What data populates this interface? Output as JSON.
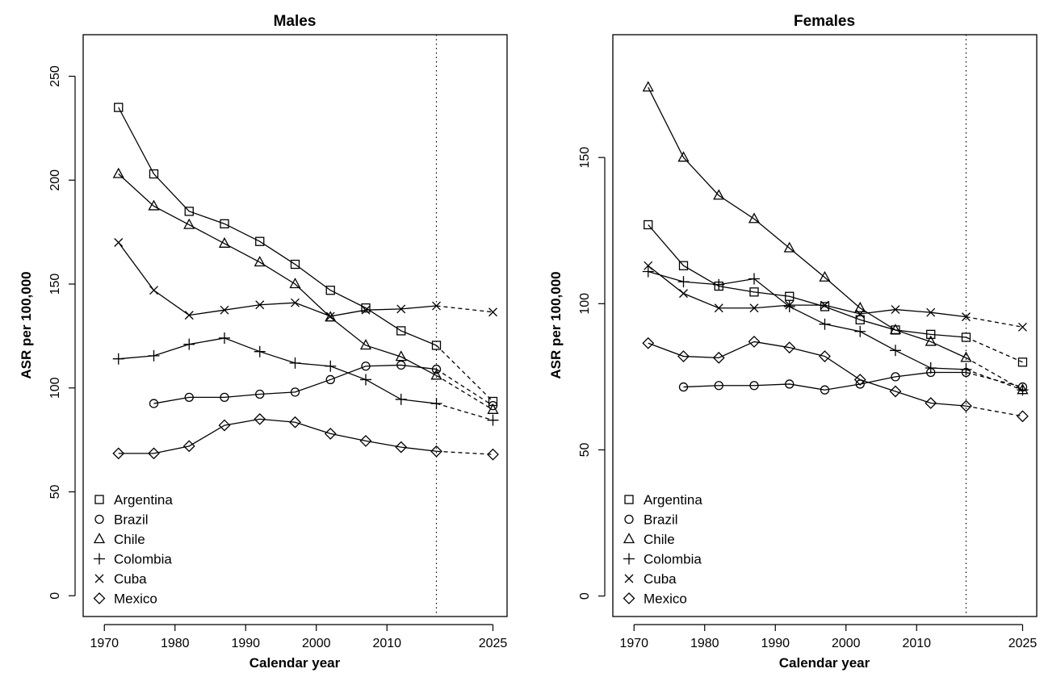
{
  "chart_data": [
    {
      "type": "line",
      "title": "Males",
      "xlabel": "Calendar year",
      "ylabel": "ASR per 100,000",
      "xlim": [
        1967,
        2027
      ],
      "ylim": [
        -10,
        270
      ],
      "x_ticks": [
        "1970",
        "1980",
        "1990",
        "2000",
        "2010",
        "2025"
      ],
      "x_tick_values": [
        1970,
        1980,
        1990,
        2000,
        2010,
        2025
      ],
      "y_ticks": [
        "0",
        "50",
        "100",
        "150",
        "200",
        "250"
      ],
      "y_tick_values": [
        0,
        50,
        100,
        150,
        200,
        250
      ],
      "grid": false,
      "legend": "bottom-left",
      "reference_line_x": 2017,
      "x": [
        1972,
        1977,
        1982,
        1987,
        1992,
        1997,
        2002,
        2007,
        2012,
        2017
      ],
      "projection_x": 2025,
      "series": [
        {
          "name": "Argentina",
          "marker": "square",
          "values": [
            235,
            203,
            185,
            179,
            170.5,
            159.5,
            147,
            138.5,
            127.5,
            120.5
          ],
          "projection": 93.5
        },
        {
          "name": "Brazil",
          "marker": "circle",
          "values": [
            null,
            92.5,
            95.5,
            95.5,
            97,
            98,
            104,
            110.5,
            111,
            109
          ],
          "projection": 91.5
        },
        {
          "name": "Chile",
          "marker": "triangle",
          "values": [
            203,
            187.5,
            178.5,
            169.5,
            160.5,
            150,
            134,
            120.5,
            115,
            106
          ],
          "projection": 89.5
        },
        {
          "name": "Colombia",
          "marker": "plus",
          "values": [
            114,
            115.5,
            121,
            124,
            117.5,
            112,
            110.5,
            104,
            94.5,
            92.5
          ],
          "projection": 84.5
        },
        {
          "name": "Cuba",
          "marker": "cross",
          "values": [
            170,
            147,
            135,
            137.5,
            140,
            141,
            134.5,
            137.5,
            138,
            139.5
          ],
          "projection": 136.5
        },
        {
          "name": "Mexico",
          "marker": "diamond",
          "values": [
            68.5,
            68.5,
            72,
            82,
            85,
            83.5,
            78,
            74.5,
            71.5,
            69.5
          ],
          "projection": 68
        }
      ]
    },
    {
      "type": "line",
      "title": "Females",
      "xlabel": "Calendar year",
      "ylabel": "ASR per 100,000",
      "xlim": [
        1967,
        2027
      ],
      "ylim": [
        -7,
        192
      ],
      "x_ticks": [
        "1970",
        "1980",
        "1990",
        "2000",
        "2010",
        "2025"
      ],
      "x_tick_values": [
        1970,
        1980,
        1990,
        2000,
        2010,
        2025
      ],
      "y_ticks": [
        "0",
        "50",
        "100",
        "150"
      ],
      "y_tick_values": [
        0,
        50,
        100,
        150
      ],
      "grid": false,
      "legend": "bottom-left",
      "reference_line_x": 2017,
      "x": [
        1972,
        1977,
        1982,
        1987,
        1992,
        1997,
        2002,
        2007,
        2012,
        2017
      ],
      "projection_x": 2025,
      "series": [
        {
          "name": "Argentina",
          "marker": "square",
          "values": [
            127,
            113,
            106,
            104,
            102.5,
            99,
            94.5,
            91,
            89.5,
            88.5
          ],
          "projection": 80
        },
        {
          "name": "Brazil",
          "marker": "circle",
          "values": [
            null,
            71.5,
            72,
            72,
            72.5,
            70.5,
            72.5,
            75,
            76.5,
            76.5
          ],
          "projection": 71.5
        },
        {
          "name": "Chile",
          "marker": "triangle",
          "values": [
            174,
            150,
            137,
            129,
            119,
            109,
            98.5,
            91,
            87,
            81.5
          ],
          "projection": 70.5
        },
        {
          "name": "Colombia",
          "marker": "plus",
          "values": [
            111,
            107.5,
            106.5,
            108.5,
            99,
            93,
            90.5,
            84,
            78,
            77.5
          ],
          "projection": 70.5
        },
        {
          "name": "Cuba",
          "marker": "cross",
          "values": [
            113,
            103.5,
            98.5,
            98.5,
            99.5,
            99.5,
            96.5,
            98,
            97,
            95.5
          ],
          "projection": 92
        },
        {
          "name": "Mexico",
          "marker": "diamond",
          "values": [
            86.5,
            82,
            81.5,
            87,
            85,
            82,
            74,
            70,
            66,
            65
          ],
          "projection": 61.5
        }
      ]
    }
  ]
}
